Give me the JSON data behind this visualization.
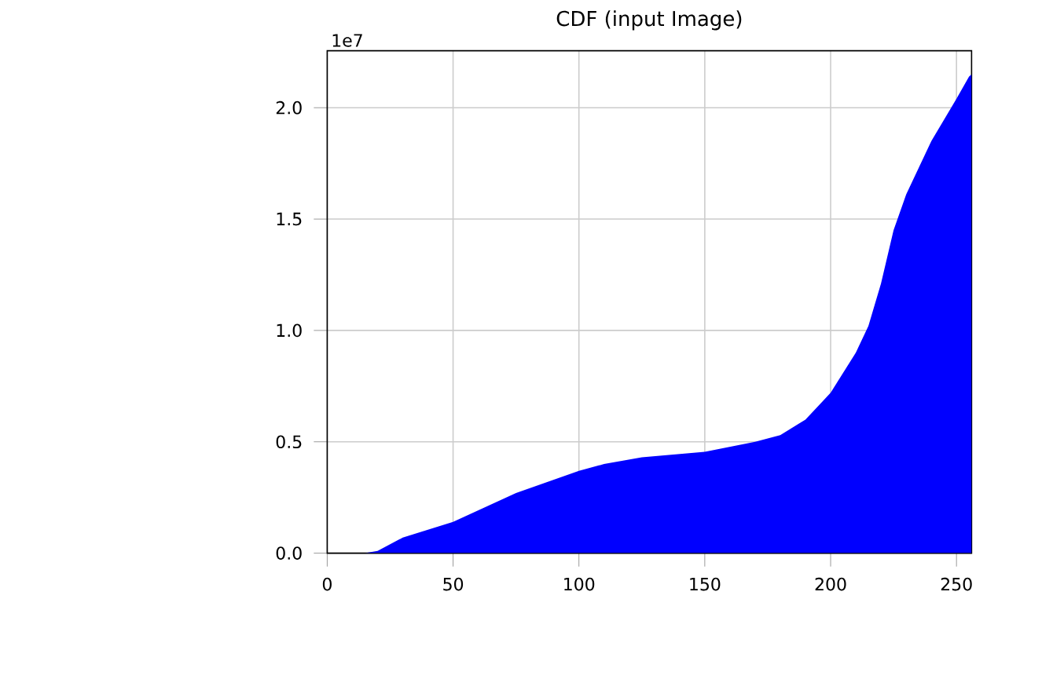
{
  "chart_data": {
    "type": "area",
    "title": "CDF (input Image)",
    "annotations": [
      "1e7"
    ],
    "x": [
      0,
      15,
      20,
      30,
      50,
      75,
      100,
      110,
      125,
      150,
      170,
      180,
      190,
      200,
      210,
      215,
      220,
      225,
      230,
      240,
      250,
      255,
      256
    ],
    "values": [
      0,
      0,
      0.01,
      0.07,
      0.14,
      0.27,
      0.37,
      0.4,
      0.43,
      0.455,
      0.5,
      0.53,
      0.6,
      0.72,
      0.9,
      1.02,
      1.21,
      1.45,
      1.61,
      1.85,
      2.04,
      2.14,
      2.15
    ],
    "color": "#0000ff",
    "xlim": [
      0,
      256
    ],
    "ylim": [
      0,
      2.256
    ],
    "xticks": [
      0,
      50,
      100,
      150,
      200,
      250
    ],
    "yticks": [
      {
        "value": 0,
        "label": "0.0"
      },
      {
        "value": 0.5,
        "label": "0.5"
      },
      {
        "value": 1,
        "label": "1.0"
      },
      {
        "value": 1.5,
        "label": "1.5"
      },
      {
        "value": 2,
        "label": "2.0"
      }
    ],
    "grid": true
  }
}
